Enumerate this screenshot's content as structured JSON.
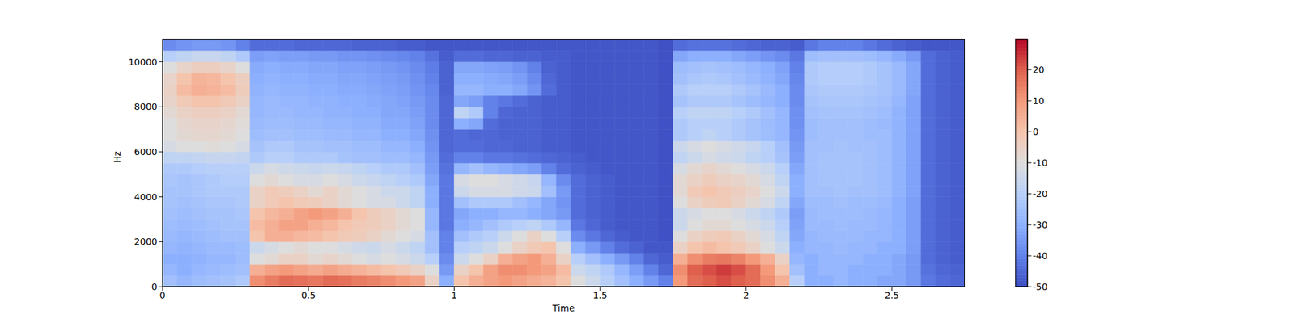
{
  "chart_data": {
    "type": "heatmap",
    "xlabel": "Time",
    "ylabel": "Hz",
    "xlim": [
      0,
      2.75
    ],
    "xticks": [
      0,
      0.5,
      1,
      1.5,
      2,
      2.5
    ],
    "ylim": [
      0,
      11025
    ],
    "yticks": [
      0,
      2000,
      4000,
      6000,
      8000,
      10000
    ],
    "time_edges": [
      0,
      0.05,
      0.1,
      0.15,
      0.2,
      0.25,
      0.3,
      0.35,
      0.4,
      0.45,
      0.5,
      0.55,
      0.6,
      0.65,
      0.7,
      0.75,
      0.8,
      0.85,
      0.9,
      0.95,
      1,
      1.05,
      1.1,
      1.15,
      1.2,
      1.25,
      1.3,
      1.35,
      1.4,
      1.45,
      1.5,
      1.55,
      1.6,
      1.65,
      1.7,
      1.75,
      1.8,
      1.85,
      1.9,
      1.95,
      2,
      2.05,
      2.1,
      2.15,
      2.2,
      2.25,
      2.3,
      2.35,
      2.4,
      2.45,
      2.5,
      2.55,
      2.6,
      2.65,
      2.7,
      2.75
    ],
    "freq_edges": [
      0,
      500,
      1000,
      1500,
      2000,
      2500,
      3000,
      3500,
      4000,
      4500,
      5000,
      5500,
      6000,
      6500,
      7000,
      7500,
      8000,
      8500,
      9000,
      9500,
      10000,
      10500,
      11025
    ],
    "cells": [
      [
        -25,
        -28,
        -26,
        -25,
        -24,
        -22,
        12,
        15,
        18,
        17,
        16,
        18,
        17,
        15,
        14,
        12,
        10,
        8,
        -5,
        -30,
        0,
        5,
        8,
        10,
        8,
        6,
        4,
        0,
        -10,
        -15,
        -20,
        -25,
        -30,
        -35,
        -40,
        10,
        18,
        20,
        22,
        20,
        18,
        12,
        5,
        -20,
        -30,
        -30,
        -28,
        -30,
        -30,
        -32,
        -32,
        -35,
        -42,
        -44,
        -45
      ],
      [
        -28,
        -30,
        -28,
        -27,
        -26,
        -25,
        5,
        8,
        10,
        8,
        6,
        8,
        6,
        4,
        2,
        0,
        -2,
        -5,
        -10,
        -35,
        -5,
        0,
        8,
        12,
        12,
        10,
        8,
        2,
        -15,
        -18,
        -22,
        -28,
        -34,
        -40,
        -45,
        12,
        20,
        22,
        24,
        22,
        18,
        10,
        0,
        -25,
        -30,
        -28,
        -28,
        -30,
        -30,
        -30,
        -32,
        -35,
        -43,
        -45,
        -46
      ],
      [
        -30,
        -30,
        -29,
        -28,
        -28,
        -26,
        -10,
        -8,
        -5,
        -5,
        -8,
        -6,
        -8,
        -10,
        -12,
        -10,
        -12,
        -15,
        -20,
        -38,
        -15,
        -10,
        -5,
        5,
        8,
        10,
        5,
        -5,
        -20,
        -25,
        -30,
        -35,
        -40,
        -45,
        -47,
        5,
        12,
        15,
        16,
        14,
        10,
        5,
        -5,
        -28,
        -30,
        -28,
        -28,
        -28,
        -30,
        -30,
        -32,
        -35,
        -44,
        -46,
        -47
      ],
      [
        -28,
        -29,
        -28,
        -27,
        -27,
        -26,
        -15,
        -12,
        -10,
        -8,
        -10,
        -10,
        -12,
        -14,
        -15,
        -12,
        -15,
        -18,
        -25,
        -40,
        -20,
        -18,
        -15,
        -10,
        -5,
        -2,
        0,
        -10,
        -30,
        -35,
        -40,
        -44,
        -46,
        -48,
        -48,
        -5,
        0,
        2,
        0,
        -2,
        -5,
        -10,
        -15,
        -30,
        -28,
        -28,
        -27,
        -28,
        -28,
        -30,
        -30,
        -34,
        -44,
        -46,
        -47
      ],
      [
        -27,
        -28,
        -27,
        -26,
        -25,
        -25,
        0,
        5,
        5,
        3,
        2,
        0,
        -2,
        -3,
        -5,
        -8,
        -10,
        -12,
        -25,
        -40,
        -25,
        -22,
        -20,
        -15,
        -10,
        -5,
        -10,
        -20,
        -38,
        -42,
        -45,
        -47,
        -48,
        -48,
        -49,
        -10,
        -5,
        -3,
        -2,
        -5,
        -8,
        -12,
        -18,
        -32,
        -28,
        -27,
        -27,
        -27,
        -28,
        -28,
        -30,
        -34,
        -44,
        -46,
        -47
      ],
      [
        -26,
        -27,
        -26,
        -25,
        -24,
        -24,
        2,
        5,
        8,
        8,
        5,
        3,
        0,
        -2,
        -3,
        -5,
        -8,
        -10,
        -28,
        -42,
        -30,
        -28,
        -25,
        -22,
        -20,
        -18,
        -22,
        -28,
        -42,
        -45,
        -47,
        -48,
        -48,
        -48,
        -49,
        -15,
        -10,
        -8,
        -8,
        -10,
        -12,
        -15,
        -20,
        -33,
        -27,
        -27,
        -26,
        -27,
        -27,
        -28,
        -30,
        -34,
        -44,
        -46,
        -47
      ],
      [
        -25,
        -26,
        -25,
        -24,
        -24,
        -23,
        0,
        3,
        5,
        8,
        10,
        8,
        5,
        0,
        -3,
        -5,
        -8,
        -10,
        -28,
        -42,
        -32,
        -30,
        -30,
        -28,
        -28,
        -30,
        -32,
        -35,
        -44,
        -46,
        -47,
        -48,
        -48,
        -48,
        -49,
        -15,
        -12,
        -10,
        -10,
        -12,
        -15,
        -18,
        -22,
        -34,
        -27,
        -26,
        -26,
        -26,
        -27,
        -28,
        -30,
        -34,
        -44,
        -46,
        -47
      ],
      [
        -24,
        -25,
        -24,
        -23,
        -23,
        -22,
        -5,
        -2,
        0,
        -2,
        -3,
        -5,
        -8,
        -10,
        -12,
        -12,
        -15,
        -18,
        -30,
        -42,
        -25,
        -22,
        -22,
        -22,
        -25,
        -28,
        -32,
        -36,
        -44,
        -46,
        -47,
        -48,
        -48,
        -48,
        -49,
        -10,
        -5,
        -3,
        -2,
        -5,
        -8,
        -12,
        -18,
        -32,
        -26,
        -26,
        -25,
        -26,
        -26,
        -27,
        -30,
        -34,
        -44,
        -46,
        -47
      ],
      [
        -24,
        -24,
        -23,
        -22,
        -22,
        -22,
        -5,
        -2,
        -3,
        -5,
        -8,
        -5,
        -8,
        -10,
        -12,
        -15,
        -15,
        -18,
        -30,
        -42,
        -15,
        -12,
        -12,
        -12,
        -14,
        -15,
        -25,
        -35,
        -44,
        -46,
        -47,
        -48,
        -48,
        -48,
        -49,
        -8,
        -2,
        0,
        -2,
        -4,
        -6,
        -10,
        -15,
        -30,
        -25,
        -25,
        -24,
        -25,
        -25,
        -26,
        -29,
        -33,
        -44,
        -46,
        -47
      ],
      [
        -23,
        -24,
        -23,
        -22,
        -21,
        -21,
        -10,
        -8,
        -10,
        -12,
        -12,
        -10,
        -12,
        -15,
        -16,
        -18,
        -20,
        -22,
        -32,
        -42,
        -12,
        -10,
        -10,
        -12,
        -14,
        -16,
        -28,
        -38,
        -44,
        -46,
        -47,
        -48,
        -48,
        -48,
        -49,
        -8,
        -5,
        -3,
        -5,
        -6,
        -8,
        -12,
        -18,
        -30,
        -25,
        -24,
        -24,
        -24,
        -25,
        -26,
        -29,
        -33,
        -44,
        -46,
        -47
      ],
      [
        -22,
        -22,
        -21,
        -20,
        -20,
        -20,
        -15,
        -12,
        -14,
        -15,
        -16,
        -15,
        -16,
        -18,
        -20,
        -22,
        -22,
        -25,
        -34,
        -43,
        -28,
        -25,
        -28,
        -30,
        -32,
        -34,
        -40,
        -44,
        -46,
        -47,
        -48,
        -48,
        -48,
        -48,
        -49,
        -12,
        -8,
        -6,
        -8,
        -10,
        -12,
        -15,
        -20,
        -32,
        -25,
        -24,
        -24,
        -24,
        -25,
        -26,
        -29,
        -33,
        -44,
        -46,
        -47
      ],
      [
        -18,
        -18,
        -17,
        -16,
        -16,
        -17,
        -22,
        -20,
        -20,
        -22,
        -22,
        -22,
        -24,
        -25,
        -25,
        -26,
        -26,
        -28,
        -35,
        -44,
        -40,
        -40,
        -42,
        -42,
        -43,
        -44,
        -45,
        -46,
        -47,
        -48,
        -48,
        -48,
        -48,
        -48,
        -49,
        -18,
        -15,
        -12,
        -14,
        -15,
        -18,
        -20,
        -24,
        -34,
        -25,
        -24,
        -24,
        -24,
        -25,
        -26,
        -29,
        -33,
        -44,
        -46,
        -47
      ],
      [
        -12,
        -10,
        -10,
        -9,
        -10,
        -12,
        -24,
        -22,
        -22,
        -24,
        -24,
        -25,
        -25,
        -26,
        -26,
        -28,
        -28,
        -30,
        -36,
        -45,
        -44,
        -44,
        -45,
        -45,
        -46,
        -46,
        -47,
        -47,
        -48,
        -48,
        -48,
        -48,
        -48,
        -48,
        -49,
        -15,
        -12,
        -10,
        -12,
        -14,
        -16,
        -20,
        -25,
        -35,
        -25,
        -25,
        -24,
        -25,
        -25,
        -26,
        -29,
        -33,
        -44,
        -46,
        -47
      ],
      [
        -10,
        -8,
        -7,
        -7,
        -8,
        -10,
        -26,
        -25,
        -25,
        -26,
        -26,
        -27,
        -27,
        -28,
        -28,
        -30,
        -30,
        -32,
        -37,
        -45,
        -44,
        -45,
        -45,
        -46,
        -46,
        -46,
        -47,
        -47,
        -48,
        -48,
        -48,
        -48,
        -48,
        -48,
        -49,
        -22,
        -20,
        -18,
        -20,
        -22,
        -24,
        -26,
        -28,
        -36,
        -26,
        -25,
        -25,
        -25,
        -26,
        -26,
        -29,
        -33,
        -44,
        -46,
        -47
      ],
      [
        -10,
        -7,
        -6,
        -6,
        -7,
        -9,
        -27,
        -26,
        -26,
        -27,
        -27,
        -28,
        -28,
        -29,
        -29,
        -31,
        -31,
        -33,
        -38,
        -45,
        -30,
        -32,
        -44,
        -46,
        -46,
        -46,
        -47,
        -47,
        -48,
        -48,
        -48,
        -48,
        -48,
        -48,
        -49,
        -22,
        -20,
        -20,
        -20,
        -22,
        -24,
        -26,
        -28,
        -37,
        -26,
        -25,
        -25,
        -25,
        -26,
        -27,
        -29,
        -33,
        -44,
        -46,
        -47
      ],
      [
        -8,
        -5,
        -4,
        -4,
        -5,
        -8,
        -28,
        -27,
        -27,
        -28,
        -28,
        -29,
        -29,
        -30,
        -30,
        -32,
        -32,
        -34,
        -38,
        -45,
        -18,
        -22,
        -40,
        -45,
        -46,
        -46,
        -47,
        -47,
        -48,
        -48,
        -48,
        -48,
        -48,
        -48,
        -49,
        -20,
        -18,
        -18,
        -18,
        -20,
        -22,
        -25,
        -28,
        -37,
        -25,
        -24,
        -24,
        -24,
        -25,
        -26,
        -29,
        -33,
        -44,
        -46,
        -47
      ],
      [
        -6,
        -2,
        0,
        0,
        -2,
        -5,
        -28,
        -27,
        -28,
        -28,
        -29,
        -29,
        -30,
        -30,
        -31,
        -32,
        -33,
        -35,
        -38,
        -45,
        -32,
        -34,
        -40,
        -42,
        -44,
        -46,
        -47,
        -47,
        -48,
        -48,
        -48,
        -48,
        -48,
        -48,
        -49,
        -24,
        -22,
        -22,
        -22,
        -24,
        -26,
        -28,
        -30,
        -38,
        -24,
        -23,
        -23,
        -23,
        -24,
        -25,
        -28,
        -33,
        -44,
        -46,
        -47
      ],
      [
        -5,
        2,
        5,
        4,
        2,
        -3,
        -29,
        -28,
        -29,
        -29,
        -30,
        -30,
        -31,
        -31,
        -32,
        -33,
        -34,
        -36,
        -39,
        -46,
        -28,
        -28,
        -30,
        -30,
        -32,
        -36,
        -44,
        -47,
        -48,
        -48,
        -48,
        -48,
        -48,
        -48,
        -49,
        -22,
        -20,
        -20,
        -20,
        -22,
        -24,
        -27,
        -30,
        -38,
        -23,
        -22,
        -22,
        -22,
        -23,
        -24,
        -27,
        -32,
        -44,
        -46,
        -47
      ],
      [
        -6,
        0,
        4,
        3,
        0,
        -4,
        -30,
        -29,
        -30,
        -30,
        -31,
        -31,
        -32,
        -32,
        -33,
        -34,
        -35,
        -37,
        -40,
        -46,
        -30,
        -30,
        -31,
        -32,
        -34,
        -38,
        -45,
        -47,
        -48,
        -48,
        -48,
        -48,
        -48,
        -48,
        -49,
        -25,
        -23,
        -22,
        -23,
        -25,
        -27,
        -29,
        -32,
        -39,
        -22,
        -21,
        -21,
        -21,
        -22,
        -24,
        -27,
        -32,
        -44,
        -46,
        -47
      ],
      [
        -10,
        -6,
        -4,
        -4,
        -6,
        -10,
        -31,
        -30,
        -31,
        -31,
        -32,
        -32,
        -33,
        -33,
        -34,
        -35,
        -36,
        -38,
        -41,
        -46,
        -32,
        -32,
        -33,
        -34,
        -36,
        -40,
        -46,
        -47,
        -48,
        -48,
        -48,
        -48,
        -48,
        -48,
        -49,
        -26,
        -25,
        -24,
        -25,
        -26,
        -28,
        -30,
        -33,
        -40,
        -22,
        -21,
        -21,
        -21,
        -22,
        -24,
        -27,
        -32,
        -44,
        -46,
        -47
      ],
      [
        -20,
        -18,
        -16,
        -16,
        -18,
        -22,
        -34,
        -33,
        -34,
        -34,
        -35,
        -35,
        -36,
        -36,
        -37,
        -38,
        -39,
        -40,
        -43,
        -47,
        -44,
        -44,
        -45,
        -45,
        -46,
        -46,
        -47,
        -47,
        -48,
        -48,
        -48,
        -48,
        -48,
        -48,
        -49,
        -32,
        -30,
        -30,
        -30,
        -32,
        -34,
        -36,
        -38,
        -42,
        -26,
        -25,
        -25,
        -25,
        -26,
        -28,
        -31,
        -35,
        -44,
        -46,
        -47
      ],
      [
        -38,
        -36,
        -35,
        -35,
        -36,
        -40,
        -44,
        -44,
        -44,
        -45,
        -45,
        -45,
        -45,
        -46,
        -46,
        -46,
        -47,
        -47,
        -48,
        -48,
        -48,
        -48,
        -48,
        -48,
        -48,
        -48,
        -48,
        -48,
        -48,
        -48,
        -48,
        -48,
        -48,
        -48,
        -49,
        -44,
        -43,
        -43,
        -43,
        -44,
        -45,
        -46,
        -46,
        -47,
        -42,
        -40,
        -40,
        -40,
        -42,
        -44,
        -46,
        -47,
        -48,
        -48,
        -48
      ]
    ],
    "colorbar": {
      "range": [
        -50,
        30
      ],
      "ticks": [
        -50,
        -40,
        -30,
        -20,
        -10,
        0,
        10,
        20
      ]
    }
  }
}
